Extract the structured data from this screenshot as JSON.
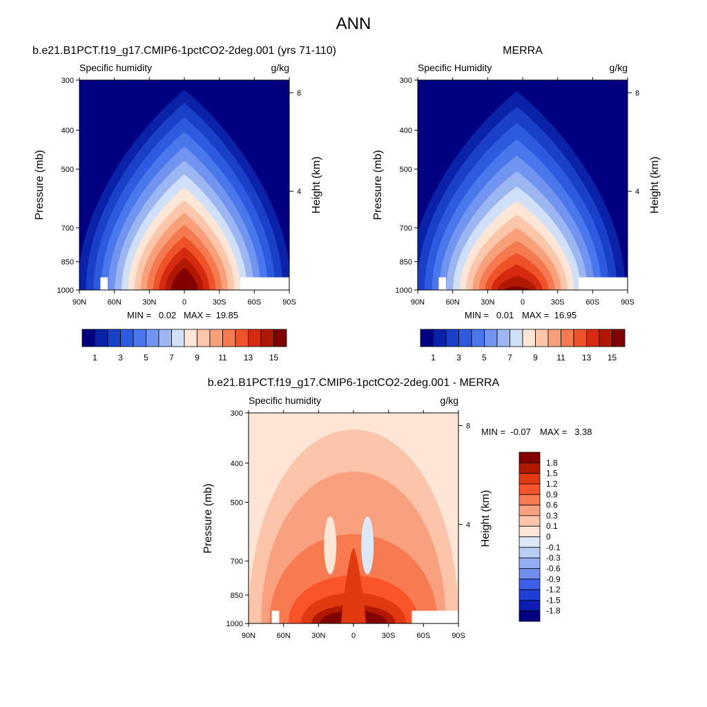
{
  "page_title": "ANN",
  "chart_data": [
    {
      "type": "heatmap",
      "title": "b.e21.B1PCT.f19_g17.CMIP6-1pctCO2-2deg.001 (yrs 71-110)",
      "subtitle_left": "Specific humidity",
      "subtitle_right": "g/kg",
      "ylabel": "Pressure (mb)",
      "ylabel_right": "Height (km)",
      "x_ticks": [
        "90N",
        "60N",
        "30N",
        "0",
        "30S",
        "60S",
        "90S"
      ],
      "x_values": [
        90,
        60,
        30,
        0,
        -30,
        -60,
        -90
      ],
      "y_ticks": [
        "300",
        "400",
        "500",
        "700",
        "850",
        "1000"
      ],
      "y_values": [
        300,
        400,
        500,
        700,
        850,
        1000
      ],
      "y_right_ticks": [
        "8",
        "4"
      ],
      "ylim": [
        300,
        1000
      ],
      "min_label": "MIN =   0.02",
      "max_label": "MAX =  19.85",
      "min": 0.02,
      "max": 19.85,
      "peak_value": 19.85,
      "peak_lat": 0,
      "colorbar_labels": [
        "1",
        "3",
        "5",
        "7",
        "9",
        "11",
        "13",
        "15"
      ],
      "colorbar_levels": [
        1,
        3,
        5,
        7,
        9,
        11,
        13,
        15
      ]
    },
    {
      "type": "heatmap",
      "title": "MERRA",
      "subtitle_left": "Specific Humidity",
      "subtitle_right": "g/kg",
      "ylabel": "Pressure (mb)",
      "ylabel_right": "Height (km)",
      "x_ticks": [
        "90N",
        "60N",
        "30N",
        "0",
        "30S",
        "60S",
        "90S"
      ],
      "x_values": [
        90,
        60,
        30,
        0,
        -30,
        -60,
        -90
      ],
      "y_ticks": [
        "300",
        "400",
        "500",
        "700",
        "850",
        "1000"
      ],
      "y_values": [
        300,
        400,
        500,
        700,
        850,
        1000
      ],
      "y_right_ticks": [
        "8",
        "4"
      ],
      "ylim": [
        300,
        1000
      ],
      "min_label": "MIN =   0.01",
      "max_label": "MAX =  16.95",
      "min": 0.01,
      "max": 16.95,
      "peak_value": 16.95,
      "peak_lat": 5,
      "colorbar_labels": [
        "1",
        "3",
        "5",
        "7",
        "9",
        "11",
        "13",
        "15"
      ],
      "colorbar_levels": [
        1,
        3,
        5,
        7,
        9,
        11,
        13,
        15
      ]
    },
    {
      "type": "heatmap",
      "title": "b.e21.B1PCT.f19_g17.CMIP6-1pctCO2-2deg.001 - MERRA",
      "subtitle_left": "Specific humidity",
      "subtitle_right": "g/kg",
      "ylabel": "Pressure (mb)",
      "ylabel_right": "Height (km)",
      "x_ticks": [
        "90N",
        "60N",
        "30N",
        "0",
        "30S",
        "60S",
        "90S"
      ],
      "x_values": [
        90,
        60,
        30,
        0,
        -30,
        -60,
        -90
      ],
      "y_ticks": [
        "300",
        "400",
        "500",
        "700",
        "850",
        "1000"
      ],
      "y_values": [
        300,
        400,
        500,
        700,
        850,
        1000
      ],
      "y_right_ticks": [
        "8",
        "4"
      ],
      "ylim": [
        300,
        1000
      ],
      "min_label": "MIN =  -0.07",
      "max_label": "MAX =   3.38",
      "min": -0.07,
      "max": 3.38,
      "colorbar_labels": [
        "1.8",
        "1.5",
        "1.2",
        "0.9",
        "0.6",
        "0.3",
        "0.1",
        "0",
        "-0.1",
        "-0.3",
        "-0.6",
        "-0.9",
        "-1.2",
        "-1.5",
        "-1.8"
      ],
      "colorbar_levels": [
        1.8,
        1.5,
        1.2,
        0.9,
        0.6,
        0.3,
        0.1,
        0,
        -0.1,
        -0.3,
        -0.6,
        -0.9,
        -1.2,
        -1.5,
        -1.8
      ]
    }
  ],
  "colors": {
    "abs_palette": [
      "#000080",
      "#0a22a8",
      "#1a3fc8",
      "#2e5ae0",
      "#4a78ec",
      "#7094ef",
      "#9cb6f2",
      "#cfe0f8",
      "#fde6d6",
      "#fbc6aa",
      "#f8a07a",
      "#f57a50",
      "#ee5228",
      "#d62a10",
      "#b01800",
      "#820000"
    ],
    "diff_palette": [
      "#820000",
      "#b01800",
      "#e23a10",
      "#f9542a",
      "#f87a50",
      "#f9a07e",
      "#fcc4a8",
      "#fde6d6",
      "#dbe9f7",
      "#b8cdf3",
      "#93aef0",
      "#6e8fec",
      "#3e5fe8",
      "#1f3ed8",
      "#0b1db2",
      "#000080"
    ]
  }
}
